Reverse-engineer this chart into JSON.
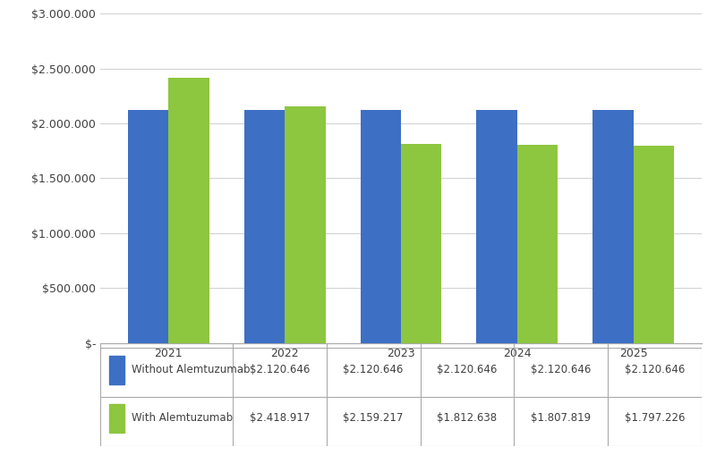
{
  "years": [
    "2021",
    "2022",
    "2023",
    "2024",
    "2025"
  ],
  "without_alemtuzumab": [
    2120646,
    2120646,
    2120646,
    2120646,
    2120646
  ],
  "with_alemtuzumab": [
    2418917,
    2159217,
    1812638,
    1807819,
    1797226
  ],
  "bar_color_without": "#3D6FC4",
  "bar_color_with": "#8DC63F",
  "legend_labels": [
    "Without Alemtuzumab",
    "With Alemtuzumab"
  ],
  "legend_values_without": [
    "$2.120.646",
    "$2.120.646",
    "$2.120.646",
    "$2.120.646",
    "$2.120.646"
  ],
  "legend_values_with": [
    "$2.418.917",
    "$2.159.217",
    "$1.812.638",
    "$1.807.819",
    "$1.797.226"
  ],
  "ylim": [
    0,
    3000000
  ],
  "yticks": [
    0,
    500000,
    1000000,
    1500000,
    2000000,
    2500000,
    3000000
  ],
  "ytick_labels": [
    "$-",
    "$500.000",
    "$1.000.000",
    "$1.500.000",
    "$2.000.000",
    "$2.500.000",
    "$3.000.000"
  ],
  "background_color": "#FFFFFF",
  "grid_color": "#D3D3D3",
  "bar_width": 0.35,
  "table_border_color": "#AAAAAA",
  "text_color": "#404040",
  "fontsize_ticks": 9,
  "fontsize_table": 8.5
}
